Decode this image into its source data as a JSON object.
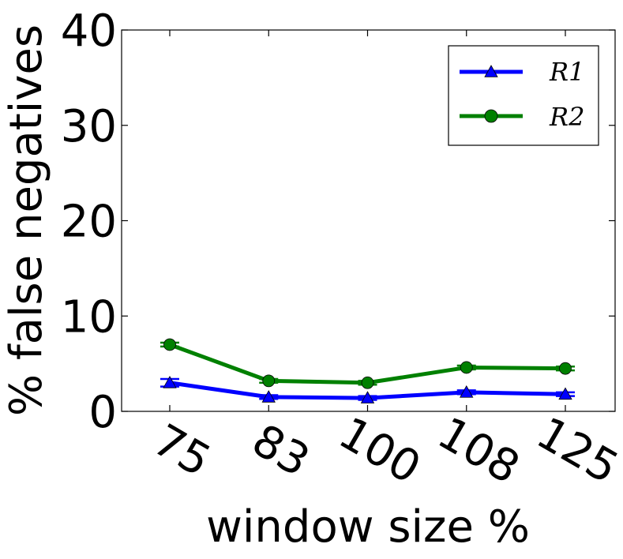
{
  "chart_data": {
    "type": "line",
    "xlabel": "window size %",
    "ylabel": "% false negatives",
    "categories": [
      "75",
      "83",
      "100",
      "108",
      "125"
    ],
    "ylim": [
      0,
      40
    ],
    "yticks": [
      0,
      10,
      20,
      30,
      40
    ],
    "grid": false,
    "legend_position": "top-right",
    "series": [
      {
        "name": "R1",
        "color": "#0000ff",
        "marker": "triangle",
        "values": [
          3.0,
          1.5,
          1.4,
          2.0,
          1.8
        ],
        "errors": [
          0.4,
          0.2,
          0.2,
          0.2,
          0.2
        ]
      },
      {
        "name": "R2",
        "color": "#008000",
        "marker": "circle",
        "values": [
          7.0,
          3.2,
          3.0,
          4.6,
          4.5
        ],
        "errors": [
          0.2,
          0.2,
          0.2,
          0.2,
          0.2
        ]
      }
    ]
  }
}
